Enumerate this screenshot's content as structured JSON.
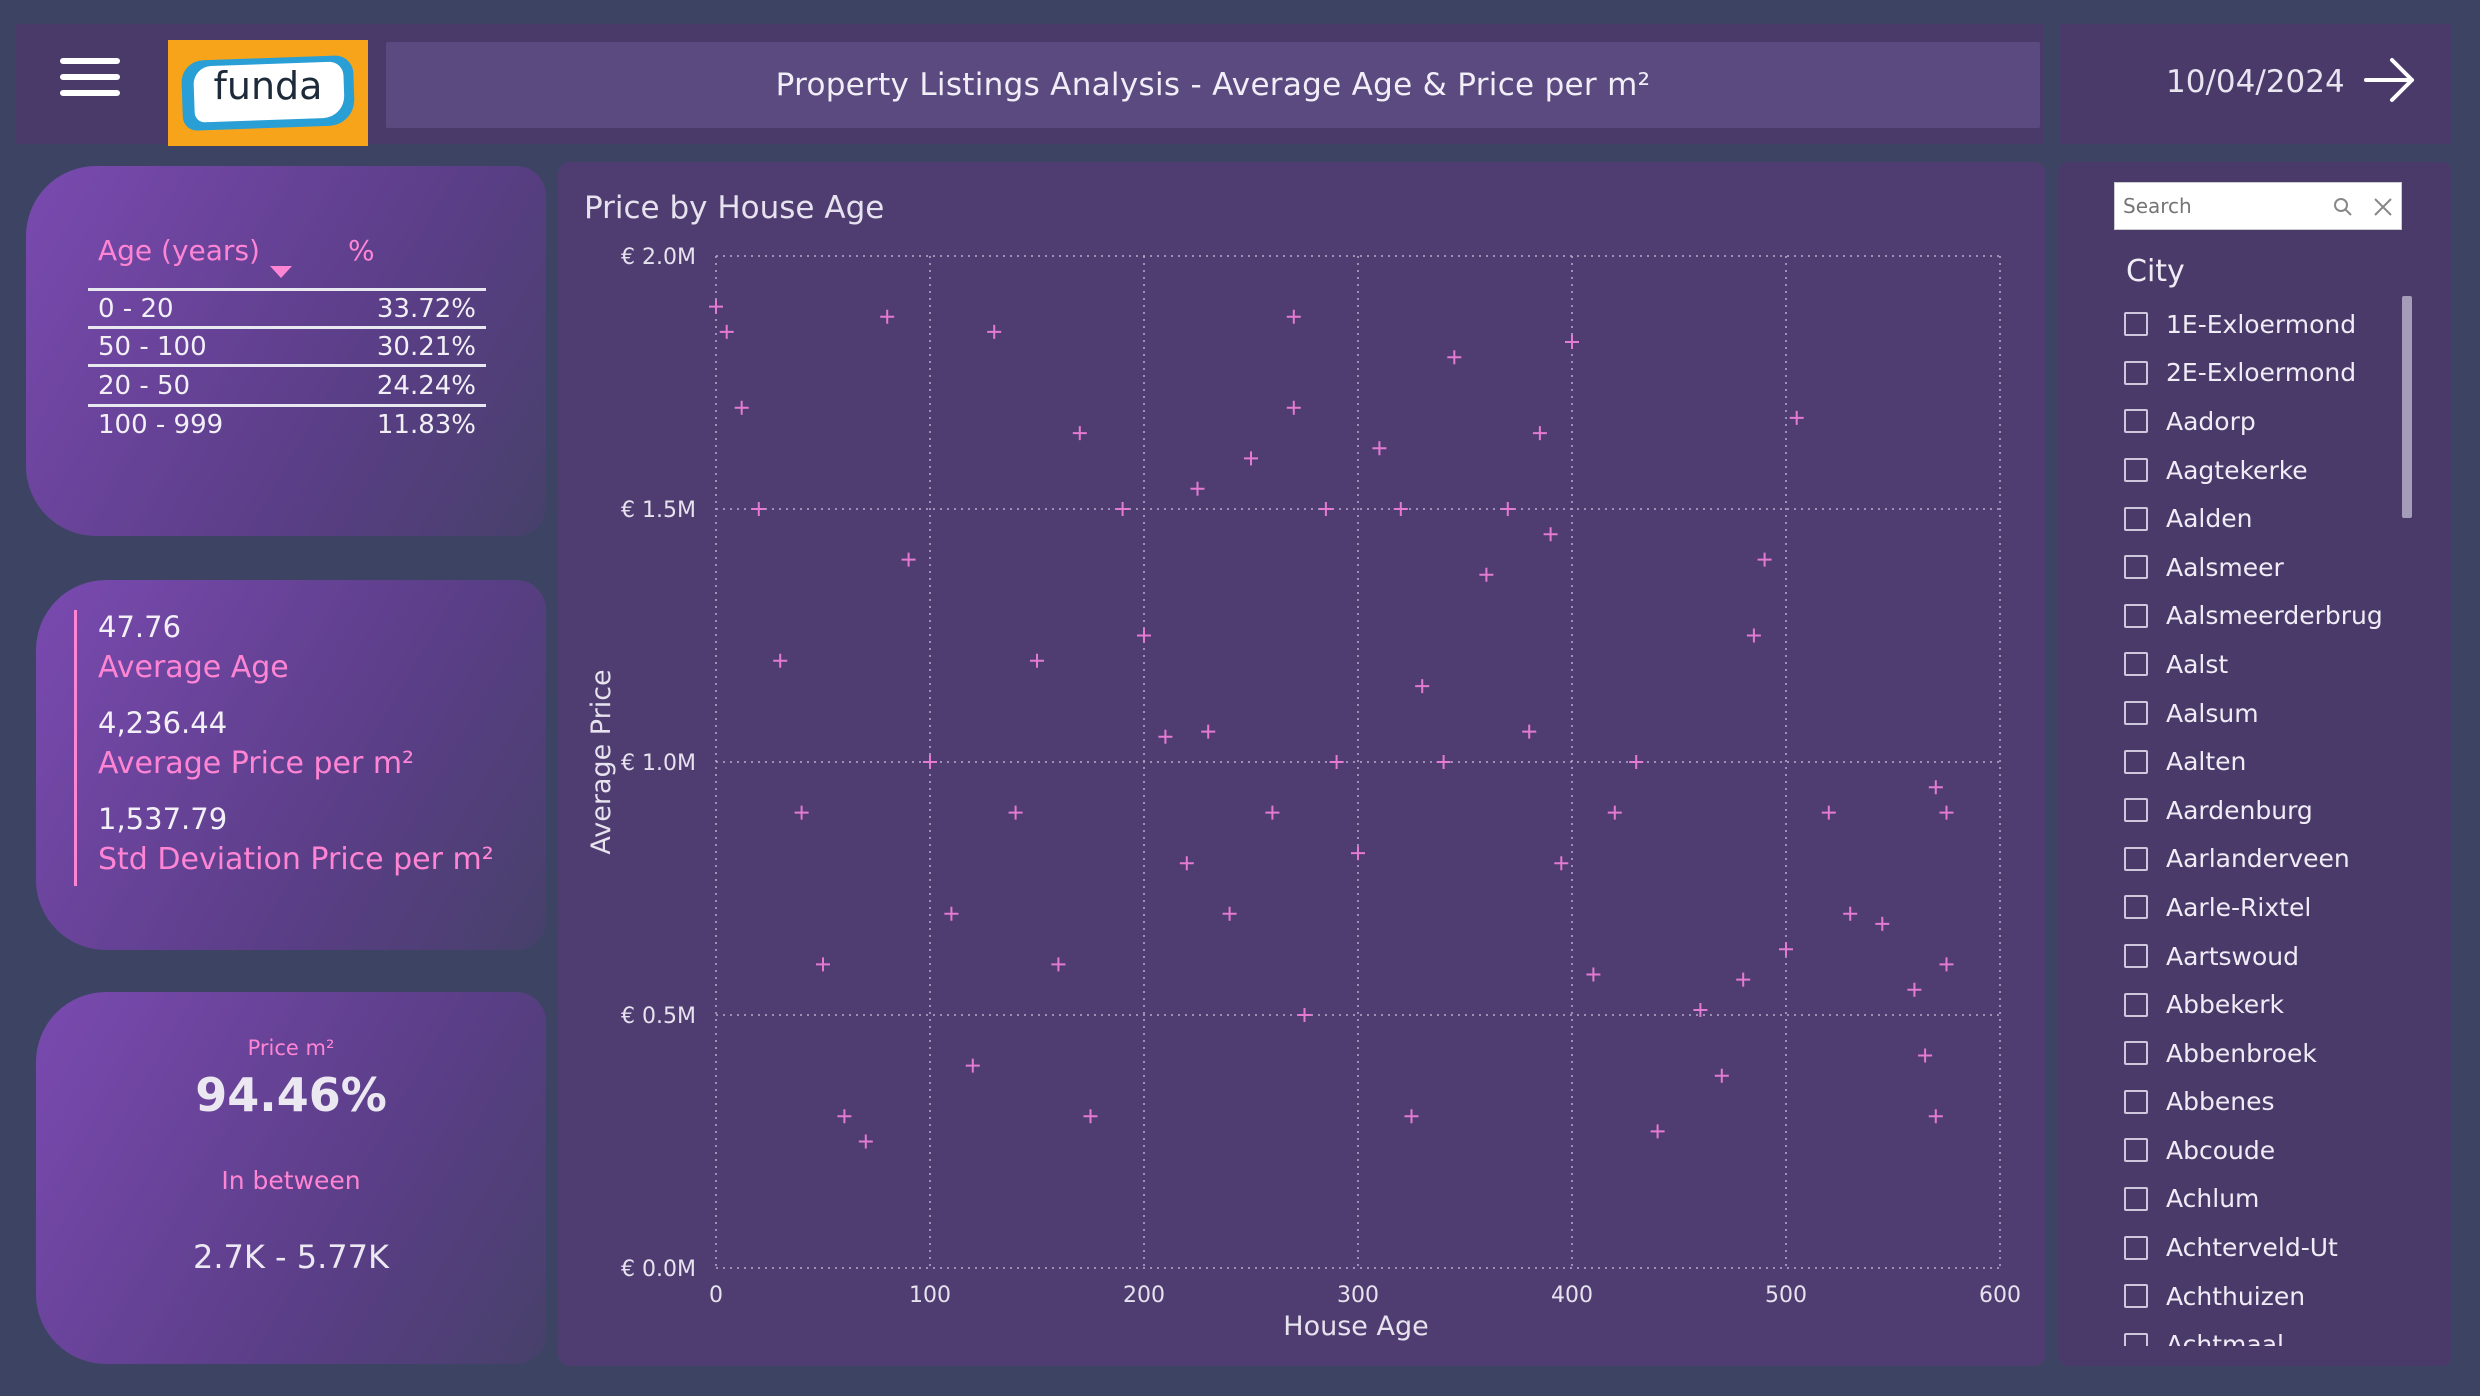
{
  "header": {
    "logo_text": "funda",
    "title": "Property Listings Analysis - Average Age & Price per m²",
    "date": "10/04/2024"
  },
  "age_table": {
    "col_age": "Age (years)",
    "col_pct": "%",
    "rows": [
      {
        "range": "0 - 20",
        "pct": "33.72%"
      },
      {
        "range": "50 - 100",
        "pct": "30.21%"
      },
      {
        "range": "20 - 50",
        "pct": "24.24%"
      },
      {
        "range": "100 - 999",
        "pct": "11.83%"
      }
    ]
  },
  "stats": {
    "avg_age_value": "47.76",
    "avg_age_label": "Average Age",
    "avg_price_value": "4,236.44",
    "avg_price_label": "Average Price per m²",
    "std_price_value": "1,537.79",
    "std_price_label": "Std Deviation Price per m²"
  },
  "price_card": {
    "label": "Price m²",
    "value": "94.46%",
    "between_label": "In between",
    "range": "2.7K - 5.77K"
  },
  "chart_data": {
    "type": "scatter",
    "title": "Price by House Age",
    "xlabel": "House Age",
    "ylabel": "Average Price",
    "xlim": [
      0,
      600
    ],
    "ylim": [
      0,
      2000000
    ],
    "x_ticks": [
      "0",
      "100",
      "200",
      "300",
      "400",
      "500",
      "600"
    ],
    "y_ticks": [
      "€ 0.0M",
      "€ 0.5M",
      "€ 1.0M",
      "€ 1.5M",
      "€ 2.0M"
    ],
    "marker": "plus",
    "color": "#e57ad2",
    "grid": true,
    "points": [
      [
        0,
        1900000
      ],
      [
        5,
        1850000
      ],
      [
        12,
        1700000
      ],
      [
        20,
        1500000
      ],
      [
        30,
        1200000
      ],
      [
        40,
        900000
      ],
      [
        50,
        600000
      ],
      [
        60,
        300000
      ],
      [
        70,
        250000
      ],
      [
        80,
        1880000
      ],
      [
        90,
        1400000
      ],
      [
        100,
        1000000
      ],
      [
        110,
        700000
      ],
      [
        120,
        400000
      ],
      [
        130,
        1850000
      ],
      [
        140,
        900000
      ],
      [
        150,
        1200000
      ],
      [
        160,
        600000
      ],
      [
        170,
        1650000
      ],
      [
        175,
        300000
      ],
      [
        190,
        1500000
      ],
      [
        200,
        1250000
      ],
      [
        210,
        1050000
      ],
      [
        220,
        800000
      ],
      [
        225,
        1540000
      ],
      [
        230,
        1060000
      ],
      [
        240,
        700000
      ],
      [
        250,
        1600000
      ],
      [
        260,
        900000
      ],
      [
        270,
        1880000
      ],
      [
        270,
        1700000
      ],
      [
        275,
        500000
      ],
      [
        285,
        1500000
      ],
      [
        290,
        1000000
      ],
      [
        300,
        820000
      ],
      [
        310,
        1620000
      ],
      [
        320,
        1500000
      ],
      [
        325,
        300000
      ],
      [
        330,
        1150000
      ],
      [
        340,
        1000000
      ],
      [
        345,
        1800000
      ],
      [
        360,
        1370000
      ],
      [
        370,
        1500000
      ],
      [
        380,
        1060000
      ],
      [
        385,
        1650000
      ],
      [
        390,
        1450000
      ],
      [
        395,
        800000
      ],
      [
        400,
        1830000
      ],
      [
        410,
        580000
      ],
      [
        420,
        900000
      ],
      [
        430,
        1000000
      ],
      [
        440,
        270000
      ],
      [
        460,
        510000
      ],
      [
        470,
        380000
      ],
      [
        480,
        570000
      ],
      [
        485,
        1250000
      ],
      [
        490,
        1400000
      ],
      [
        500,
        630000
      ],
      [
        505,
        1680000
      ],
      [
        520,
        900000
      ],
      [
        530,
        700000
      ],
      [
        545,
        680000
      ],
      [
        560,
        550000
      ],
      [
        565,
        420000
      ],
      [
        570,
        950000
      ],
      [
        570,
        300000
      ],
      [
        575,
        900000
      ],
      [
        575,
        600000
      ]
    ]
  },
  "city_filter": {
    "search_placeholder": "Search",
    "heading": "City",
    "cities": [
      "1E-Exloermond",
      "2E-Exloermond",
      "Aadorp",
      "Aagtekerke",
      "Aalden",
      "Aalsmeer",
      "Aalsmeerderbrug",
      "Aalst",
      "Aalsum",
      "Aalten",
      "Aardenburg",
      "Aarlanderveen",
      "Aarle-Rixtel",
      "Aartswoud",
      "Abbekerk",
      "Abbenbroek",
      "Abbenes",
      "Abcoude",
      "Achlum",
      "Achterveld-Ut",
      "Achthuizen",
      "Achtmaal"
    ]
  }
}
